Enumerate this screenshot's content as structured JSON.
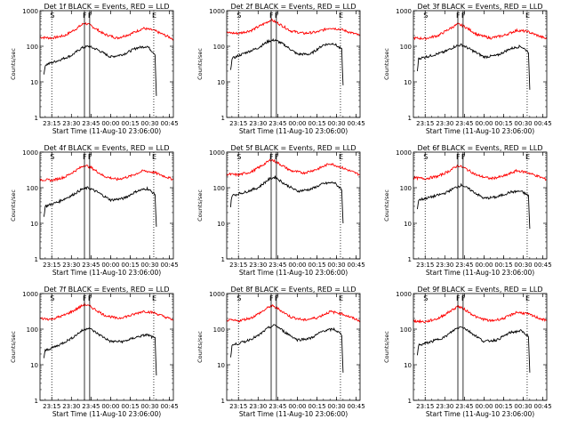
{
  "figure": {
    "x_tick_labels": [
      "23:15",
      "23:30",
      "23:45",
      "00:00",
      "00:15",
      "00:30",
      "00:45"
    ],
    "y_tick_labels": [
      "1",
      "10",
      "100",
      "1000"
    ],
    "marker_labels": [
      "S",
      "F",
      "E"
    ]
  },
  "chart_data": [
    {
      "type": "line",
      "title": "Det 1f BLACK = Events, RED = LLD",
      "xlabel": "Start Time (11-Aug-10 23:06:00)",
      "ylabel": "Counts/sec",
      "y_scale": "log",
      "ylim": [
        1,
        1000
      ],
      "xlim": [
        "23:06",
        "00:48"
      ],
      "x_ticks": [
        "23:15",
        "23:30",
        "23:45",
        "00:00",
        "00:15",
        "00:30",
        "00:45"
      ],
      "vertical_markers": [
        {
          "label": "S",
          "time": "23:15",
          "style": "dotted"
        },
        {
          "label": "F",
          "time": "23:40",
          "style": "solid"
        },
        {
          "label": "F",
          "time": "23:44",
          "style": "solid"
        },
        {
          "label": "E",
          "time": "00:33",
          "style": "dotted"
        }
      ],
      "series": [
        {
          "name": "LLD",
          "color": "#ff0000",
          "x": [
            "23:06",
            "23:15",
            "23:25",
            "23:33",
            "23:40",
            "23:45",
            "23:55",
            "00:05",
            "00:15",
            "00:25",
            "00:33",
            "00:48"
          ],
          "values": [
            180,
            170,
            200,
            300,
            450,
            380,
            220,
            170,
            220,
            320,
            280,
            160
          ]
        },
        {
          "name": "Events",
          "color": "#000000",
          "x": [
            "23:09",
            "23:10",
            "23:20",
            "23:30",
            "23:38",
            "23:43",
            "23:50",
            "00:00",
            "00:10",
            "00:20",
            "00:28",
            "00:34",
            "00:35"
          ],
          "values": [
            15,
            30,
            40,
            55,
            90,
            100,
            80,
            50,
            60,
            90,
            100,
            60,
            4
          ]
        }
      ]
    },
    {
      "type": "line",
      "title": "Det 2f BLACK = Events, RED = LLD",
      "xlabel": "Start Time (11-Aug-10 23:06:00)",
      "ylabel": "Counts/sec",
      "y_scale": "log",
      "ylim": [
        1,
        1000
      ],
      "xlim": [
        "23:06",
        "00:48"
      ],
      "x_ticks": [
        "23:15",
        "23:30",
        "23:45",
        "00:00",
        "00:15",
        "00:30",
        "00:45"
      ],
      "vertical_markers": [
        {
          "label": "S",
          "time": "23:15",
          "style": "dotted"
        },
        {
          "label": "F",
          "time": "23:40",
          "style": "solid"
        },
        {
          "label": "F",
          "time": "23:44",
          "style": "solid"
        },
        {
          "label": "E",
          "time": "00:33",
          "style": "dotted"
        }
      ],
      "series": [
        {
          "name": "LLD",
          "color": "#ff0000",
          "x": [
            "23:06",
            "23:15",
            "23:25",
            "23:33",
            "23:40",
            "23:45",
            "23:55",
            "00:05",
            "00:15",
            "00:25",
            "00:33",
            "00:48"
          ],
          "values": [
            240,
            230,
            280,
            400,
            550,
            450,
            270,
            230,
            250,
            330,
            300,
            200
          ]
        },
        {
          "name": "Events",
          "color": "#000000",
          "x": [
            "23:09",
            "23:10",
            "23:20",
            "23:30",
            "23:38",
            "23:43",
            "23:50",
            "00:00",
            "00:10",
            "00:20",
            "00:28",
            "00:34",
            "00:35"
          ],
          "values": [
            20,
            45,
            65,
            90,
            140,
            150,
            110,
            60,
            60,
            110,
            120,
            80,
            8
          ]
        }
      ]
    },
    {
      "type": "line",
      "title": "Det 3f BLACK = Events, RED = LLD",
      "xlabel": "Start Time (11-Aug-10 23:06:00)",
      "ylabel": "Counts/sec",
      "y_scale": "log",
      "ylim": [
        1,
        1000
      ],
      "xlim": [
        "23:06",
        "00:48"
      ],
      "x_ticks": [
        "23:15",
        "23:30",
        "23:45",
        "00:00",
        "00:15",
        "00:30",
        "00:45"
      ],
      "vertical_markers": [
        {
          "label": "S",
          "time": "23:15",
          "style": "dotted"
        },
        {
          "label": "F",
          "time": "23:40",
          "style": "solid"
        },
        {
          "label": "F",
          "time": "23:44",
          "style": "solid"
        },
        {
          "label": "E",
          "time": "00:33",
          "style": "dotted"
        }
      ],
      "series": [
        {
          "name": "LLD",
          "color": "#ff0000",
          "x": [
            "23:06",
            "23:15",
            "23:25",
            "23:33",
            "23:40",
            "23:45",
            "23:55",
            "00:05",
            "00:15",
            "00:25",
            "00:33",
            "00:48"
          ],
          "values": [
            170,
            165,
            200,
            300,
            420,
            360,
            210,
            170,
            200,
            280,
            260,
            160
          ]
        },
        {
          "name": "Events",
          "color": "#000000",
          "x": [
            "23:09",
            "23:10",
            "23:20",
            "23:30",
            "23:38",
            "23:43",
            "23:50",
            "00:00",
            "00:10",
            "00:20",
            "00:28",
            "00:34",
            "00:35"
          ],
          "values": [
            20,
            45,
            55,
            70,
            100,
            110,
            80,
            50,
            55,
            85,
            100,
            70,
            6
          ]
        }
      ]
    },
    {
      "type": "line",
      "title": "Det 4f BLACK = Events, RED = LLD",
      "xlabel": "Start Time (11-Aug-10 23:06:00)",
      "ylabel": "Counts/sec",
      "y_scale": "log",
      "ylim": [
        1,
        1000
      ],
      "xlim": [
        "23:06",
        "00:48"
      ],
      "x_ticks": [
        "23:15",
        "23:30",
        "23:45",
        "00:00",
        "00:15",
        "00:30",
        "00:45"
      ],
      "vertical_markers": [
        {
          "label": "S",
          "time": "23:15",
          "style": "dotted"
        },
        {
          "label": "F",
          "time": "23:40",
          "style": "solid"
        },
        {
          "label": "F",
          "time": "23:44",
          "style": "solid"
        },
        {
          "label": "E",
          "time": "00:33",
          "style": "dotted"
        }
      ],
      "series": [
        {
          "name": "LLD",
          "color": "#ff0000",
          "x": [
            "23:06",
            "23:15",
            "23:25",
            "23:33",
            "23:40",
            "23:45",
            "23:55",
            "00:05",
            "00:15",
            "00:25",
            "00:33",
            "00:48"
          ],
          "values": [
            170,
            160,
            200,
            300,
            430,
            370,
            210,
            170,
            210,
            300,
            270,
            170
          ]
        },
        {
          "name": "Events",
          "color": "#000000",
          "x": [
            "23:09",
            "23:10",
            "23:20",
            "23:30",
            "23:38",
            "23:43",
            "23:50",
            "00:00",
            "00:10",
            "00:20",
            "00:28",
            "00:34",
            "00:35"
          ],
          "values": [
            15,
            30,
            40,
            60,
            90,
            100,
            75,
            45,
            50,
            80,
            95,
            65,
            8
          ]
        }
      ]
    },
    {
      "type": "line",
      "title": "Det 5f BLACK = Events, RED = LLD",
      "xlabel": "Start Time (11-Aug-10 23:06:00)",
      "ylabel": "Counts/sec",
      "y_scale": "log",
      "ylim": [
        1,
        1000
      ],
      "xlim": [
        "23:06",
        "00:48"
      ],
      "x_ticks": [
        "23:15",
        "23:30",
        "23:45",
        "00:00",
        "00:15",
        "00:30",
        "00:45"
      ],
      "vertical_markers": [
        {
          "label": "S",
          "time": "23:15",
          "style": "dotted"
        },
        {
          "label": "F",
          "time": "23:40",
          "style": "solid"
        },
        {
          "label": "F",
          "time": "23:44",
          "style": "solid"
        },
        {
          "label": "E",
          "time": "00:33",
          "style": "dotted"
        }
      ],
      "series": [
        {
          "name": "LLD",
          "color": "#ff0000",
          "x": [
            "23:06",
            "23:15",
            "23:25",
            "23:33",
            "23:40",
            "23:45",
            "23:55",
            "00:05",
            "00:15",
            "00:25",
            "00:33",
            "00:48"
          ],
          "values": [
            240,
            230,
            280,
            420,
            620,
            500,
            300,
            260,
            330,
            480,
            380,
            230
          ]
        },
        {
          "name": "Events",
          "color": "#000000",
          "x": [
            "23:09",
            "23:10",
            "23:20",
            "23:30",
            "23:38",
            "23:43",
            "23:50",
            "00:00",
            "00:10",
            "00:20",
            "00:28",
            "00:34",
            "00:35"
          ],
          "values": [
            30,
            60,
            75,
            100,
            170,
            200,
            130,
            80,
            90,
            130,
            140,
            90,
            10
          ]
        }
      ]
    },
    {
      "type": "line",
      "title": "Det 6f BLACK = Events, RED = LLD",
      "xlabel": "Start Time (11-Aug-10 23:06:00)",
      "ylabel": "Counts/sec",
      "y_scale": "log",
      "ylim": [
        1,
        1000
      ],
      "xlim": [
        "23:06",
        "00:48"
      ],
      "x_ticks": [
        "23:15",
        "23:30",
        "23:45",
        "00:00",
        "00:15",
        "00:30",
        "00:45"
      ],
      "vertical_markers": [
        {
          "label": "S",
          "time": "23:15",
          "style": "dotted"
        },
        {
          "label": "F",
          "time": "23:40",
          "style": "solid"
        },
        {
          "label": "F",
          "time": "23:44",
          "style": "solid"
        },
        {
          "label": "E",
          "time": "00:33",
          "style": "dotted"
        }
      ],
      "series": [
        {
          "name": "LLD",
          "color": "#ff0000",
          "x": [
            "23:06",
            "23:15",
            "23:25",
            "23:33",
            "23:40",
            "23:45",
            "23:55",
            "00:05",
            "00:15",
            "00:25",
            "00:33",
            "00:48"
          ],
          "values": [
            190,
            180,
            210,
            290,
            420,
            360,
            220,
            180,
            210,
            300,
            270,
            170
          ]
        },
        {
          "name": "Events",
          "color": "#000000",
          "x": [
            "23:09",
            "23:10",
            "23:20",
            "23:30",
            "23:38",
            "23:43",
            "23:50",
            "00:00",
            "00:10",
            "00:20",
            "00:28",
            "00:34",
            "00:35"
          ],
          "values": [
            25,
            45,
            55,
            70,
            100,
            120,
            85,
            50,
            55,
            75,
            80,
            60,
            7
          ]
        }
      ]
    },
    {
      "type": "line",
      "title": "Det 7f BLACK = Events, RED = LLD",
      "xlabel": "Start Time (11-Aug-10 23:06:00)",
      "ylabel": "Counts/sec",
      "y_scale": "log",
      "ylim": [
        1,
        1000
      ],
      "xlim": [
        "23:06",
        "00:48"
      ],
      "x_ticks": [
        "23:15",
        "23:30",
        "23:45",
        "00:00",
        "00:15",
        "00:30",
        "00:45"
      ],
      "vertical_markers": [
        {
          "label": "S",
          "time": "23:15",
          "style": "dotted"
        },
        {
          "label": "F",
          "time": "23:40",
          "style": "solid"
        },
        {
          "label": "F",
          "time": "23:44",
          "style": "solid"
        },
        {
          "label": "E",
          "time": "00:33",
          "style": "dotted"
        }
      ],
      "series": [
        {
          "name": "LLD",
          "color": "#ff0000",
          "x": [
            "23:06",
            "23:15",
            "23:25",
            "23:33",
            "23:40",
            "23:45",
            "23:55",
            "00:05",
            "00:15",
            "00:25",
            "00:33",
            "00:48"
          ],
          "values": [
            200,
            190,
            250,
            350,
            500,
            420,
            250,
            200,
            240,
            320,
            290,
            180
          ]
        },
        {
          "name": "Events",
          "color": "#000000",
          "x": [
            "23:09",
            "23:10",
            "23:20",
            "23:30",
            "23:38",
            "23:43",
            "23:50",
            "00:00",
            "00:10",
            "00:20",
            "00:28",
            "00:34",
            "00:35"
          ],
          "values": [
            15,
            25,
            35,
            55,
            90,
            110,
            75,
            45,
            45,
            60,
            70,
            55,
            5
          ]
        }
      ]
    },
    {
      "type": "line",
      "title": "Det 8f BLACK = Events, RED = LLD",
      "xlabel": "Start Time (11-Aug-10 23:06:00)",
      "ylabel": "Counts/sec",
      "y_scale": "log",
      "ylim": [
        1,
        1000
      ],
      "xlim": [
        "23:06",
        "00:48"
      ],
      "x_ticks": [
        "23:15",
        "23:30",
        "23:45",
        "00:00",
        "00:15",
        "00:30",
        "00:45"
      ],
      "vertical_markers": [
        {
          "label": "S",
          "time": "23:15",
          "style": "dotted"
        },
        {
          "label": "F",
          "time": "23:40",
          "style": "solid"
        },
        {
          "label": "F",
          "time": "23:44",
          "style": "solid"
        },
        {
          "label": "E",
          "time": "00:33",
          "style": "dotted"
        }
      ],
      "series": [
        {
          "name": "LLD",
          "color": "#ff0000",
          "x": [
            "23:06",
            "23:15",
            "23:25",
            "23:33",
            "23:40",
            "23:45",
            "23:55",
            "00:05",
            "00:15",
            "00:25",
            "00:33",
            "00:48"
          ],
          "values": [
            180,
            170,
            210,
            310,
            460,
            380,
            220,
            180,
            210,
            310,
            280,
            170
          ]
        },
        {
          "name": "Events",
          "color": "#000000",
          "x": [
            "23:09",
            "23:10",
            "23:20",
            "23:30",
            "23:38",
            "23:43",
            "23:50",
            "00:00",
            "00:10",
            "00:20",
            "00:28",
            "00:34",
            "00:35"
          ],
          "values": [
            15,
            35,
            45,
            65,
            110,
            130,
            85,
            50,
            55,
            90,
            100,
            70,
            6
          ]
        }
      ]
    },
    {
      "type": "line",
      "title": "Det 9f BLACK = Events, RED = LLD",
      "xlabel": "Start Time (11-Aug-10 23:06:00)",
      "ylabel": "Counts/sec",
      "y_scale": "log",
      "ylim": [
        1,
        1000
      ],
      "xlim": [
        "23:06",
        "00:48"
      ],
      "x_ticks": [
        "23:15",
        "23:30",
        "23:45",
        "00:00",
        "00:15",
        "00:30",
        "00:45"
      ],
      "vertical_markers": [
        {
          "label": "S",
          "time": "23:15",
          "style": "dotted"
        },
        {
          "label": "F",
          "time": "23:40",
          "style": "solid"
        },
        {
          "label": "F",
          "time": "23:44",
          "style": "solid"
        },
        {
          "label": "E",
          "time": "00:33",
          "style": "dotted"
        }
      ],
      "series": [
        {
          "name": "LLD",
          "color": "#ff0000",
          "x": [
            "23:06",
            "23:15",
            "23:25",
            "23:33",
            "23:40",
            "23:45",
            "23:55",
            "00:05",
            "00:15",
            "00:25",
            "00:33",
            "00:48"
          ],
          "values": [
            170,
            160,
            200,
            300,
            440,
            360,
            210,
            170,
            200,
            300,
            270,
            170
          ]
        },
        {
          "name": "Events",
          "color": "#000000",
          "x": [
            "23:09",
            "23:10",
            "23:20",
            "23:30",
            "23:38",
            "23:43",
            "23:50",
            "00:00",
            "00:10",
            "00:20",
            "00:28",
            "00:34",
            "00:35"
          ],
          "values": [
            20,
            35,
            45,
            60,
            100,
            120,
            80,
            45,
            50,
            80,
            90,
            65,
            6
          ]
        }
      ]
    }
  ]
}
